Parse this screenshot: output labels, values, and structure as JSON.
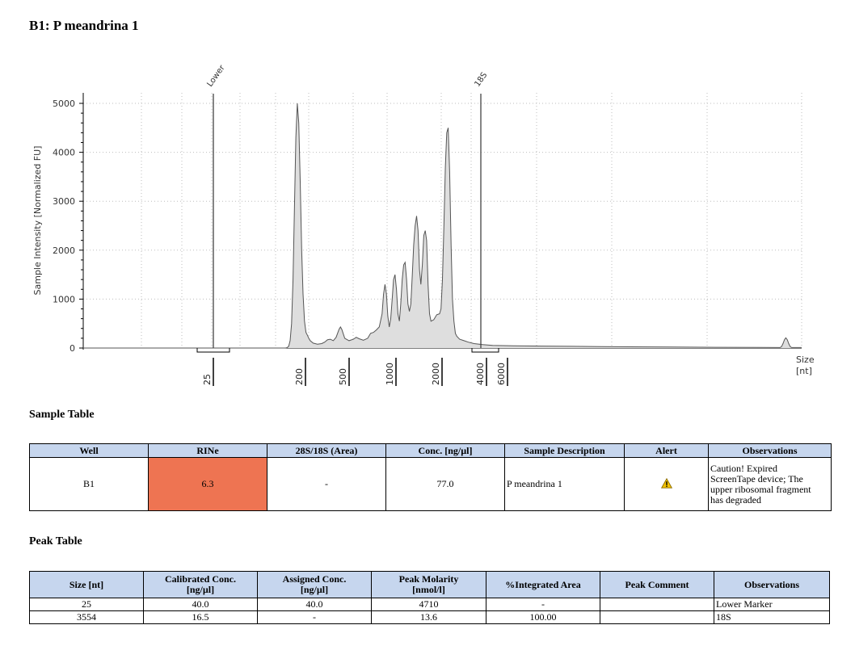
{
  "page": {
    "title": "B1: P meandrina 1"
  },
  "chart_data": {
    "type": "line",
    "ylabel": "Sample Intensity [Normalized FU]",
    "xlabel": "Size\n[nt]",
    "xlabel_lines": [
      "Size",
      "[nt]"
    ],
    "ylim": [
      0,
      5000
    ],
    "yticks": [
      0,
      1000,
      2000,
      3000,
      4000,
      5000
    ],
    "ytick_labels": [
      "0",
      "1000",
      "2000",
      "3000",
      "4000",
      "5000"
    ],
    "grid": true,
    "x_scale": "size (nt)",
    "size_ticks": [
      {
        "label": "25"
      },
      {
        "label": "200"
      },
      {
        "label": "500"
      },
      {
        "label": "1000"
      },
      {
        "label": "2000"
      },
      {
        "label": "4000"
      },
      {
        "label": "6000"
      }
    ],
    "peak_labels": [
      "Lower",
      "18S"
    ],
    "fill_color": "#dedede",
    "line_color": "#555555",
    "series": [
      {
        "values": [
          [
            0,
            0
          ],
          [
            140,
            0
          ],
          [
            141,
            2
          ],
          [
            142,
            8
          ],
          [
            143,
            40
          ],
          [
            144,
            150
          ],
          [
            145,
            500
          ],
          [
            146,
            1400
          ],
          [
            147,
            2900
          ],
          [
            148,
            4300
          ],
          [
            149,
            5000
          ],
          [
            150,
            4600
          ],
          [
            151,
            3400
          ],
          [
            152,
            2000
          ],
          [
            153,
            1100
          ],
          [
            154,
            550
          ],
          [
            155,
            320
          ],
          [
            156,
            260
          ],
          [
            157,
            200
          ],
          [
            158,
            150
          ],
          [
            160,
            100
          ],
          [
            163,
            80
          ],
          [
            166,
            90
          ],
          [
            168,
            120
          ],
          [
            170,
            170
          ],
          [
            172,
            180
          ],
          [
            174,
            150
          ],
          [
            176,
            220
          ],
          [
            178,
            380
          ],
          [
            179,
            430
          ],
          [
            180,
            380
          ],
          [
            182,
            200
          ],
          [
            185,
            150
          ],
          [
            188,
            180
          ],
          [
            190,
            220
          ],
          [
            192,
            190
          ],
          [
            195,
            160
          ],
          [
            198,
            200
          ],
          [
            200,
            300
          ],
          [
            202,
            320
          ],
          [
            204,
            370
          ],
          [
            206,
            430
          ],
          [
            208,
            700
          ],
          [
            209,
            1100
          ],
          [
            210,
            1300
          ],
          [
            211,
            1100
          ],
          [
            212,
            650
          ],
          [
            213,
            430
          ],
          [
            214,
            600
          ],
          [
            215,
            1000
          ],
          [
            216,
            1400
          ],
          [
            217,
            1500
          ],
          [
            218,
            1200
          ],
          [
            219,
            700
          ],
          [
            220,
            550
          ],
          [
            221,
            900
          ],
          [
            222,
            1400
          ],
          [
            223,
            1700
          ],
          [
            224,
            1750
          ],
          [
            225,
            1400
          ],
          [
            226,
            900
          ],
          [
            227,
            750
          ],
          [
            228,
            900
          ],
          [
            229,
            1500
          ],
          [
            230,
            2100
          ],
          [
            231,
            2500
          ],
          [
            232,
            2700
          ],
          [
            233,
            2400
          ],
          [
            234,
            1600
          ],
          [
            235,
            1300
          ],
          [
            236,
            1700
          ],
          [
            237,
            2300
          ],
          [
            238,
            2400
          ],
          [
            239,
            2200
          ],
          [
            240,
            1300
          ],
          [
            241,
            700
          ],
          [
            242,
            550
          ],
          [
            244,
            580
          ],
          [
            246,
            680
          ],
          [
            248,
            700
          ],
          [
            249,
            800
          ],
          [
            250,
            1400
          ],
          [
            251,
            2500
          ],
          [
            252,
            3700
          ],
          [
            253,
            4400
          ],
          [
            254,
            4500
          ],
          [
            255,
            3600
          ],
          [
            256,
            2100
          ],
          [
            257,
            1000
          ],
          [
            258,
            550
          ],
          [
            259,
            300
          ],
          [
            260,
            240
          ],
          [
            262,
            180
          ],
          [
            265,
            150
          ],
          [
            268,
            120
          ],
          [
            272,
            90
          ],
          [
            278,
            70
          ],
          [
            285,
            55
          ],
          [
            300,
            45
          ],
          [
            320,
            40
          ],
          [
            340,
            35
          ],
          [
            360,
            30
          ],
          [
            380,
            25
          ],
          [
            410,
            20
          ],
          [
            440,
            15
          ],
          [
            470,
            12
          ],
          [
            485,
            10
          ],
          [
            486,
            30
          ],
          [
            487,
            90
          ],
          [
            488,
            170
          ],
          [
            489,
            210
          ],
          [
            490,
            170
          ],
          [
            491,
            90
          ],
          [
            492,
            30
          ],
          [
            493,
            10
          ],
          [
            500,
            10
          ]
        ]
      }
    ]
  },
  "sample_table": {
    "title": "Sample Table",
    "headers": [
      "Well",
      "RINe",
      "28S/18S (Area)",
      "Conc. [ng/µl]",
      "Sample Description",
      "Alert",
      "Observations"
    ],
    "row": {
      "well": "B1",
      "rine": "6.3",
      "ratio": "-",
      "conc": "77.0",
      "description": "P meandrina 1",
      "alert_icon": "warning-triangle-icon",
      "observations": [
        "Caution! Expired",
        "ScreenTape device; The",
        "upper ribosomal fragment",
        "has degraded"
      ]
    },
    "rine_color": "#ee7452",
    "header_color": "#c6d6ee"
  },
  "peak_table": {
    "title": "Peak Table",
    "headers": [
      [
        "Size [nt]"
      ],
      [
        "Calibrated Conc.",
        "[ng/µl]"
      ],
      [
        "Assigned Conc.",
        "[ng/µl]"
      ],
      [
        "Peak Molarity",
        "[nmol/l]"
      ],
      [
        "%Integrated Area"
      ],
      [
        "Peak Comment"
      ],
      [
        "Observations"
      ]
    ],
    "rows": [
      [
        "25",
        "40.0",
        "40.0",
        "4710",
        "-",
        "",
        "Lower Marker"
      ],
      [
        "3554",
        "16.5",
        "-",
        "13.6",
        "100.00",
        "",
        "18S"
      ]
    ]
  }
}
